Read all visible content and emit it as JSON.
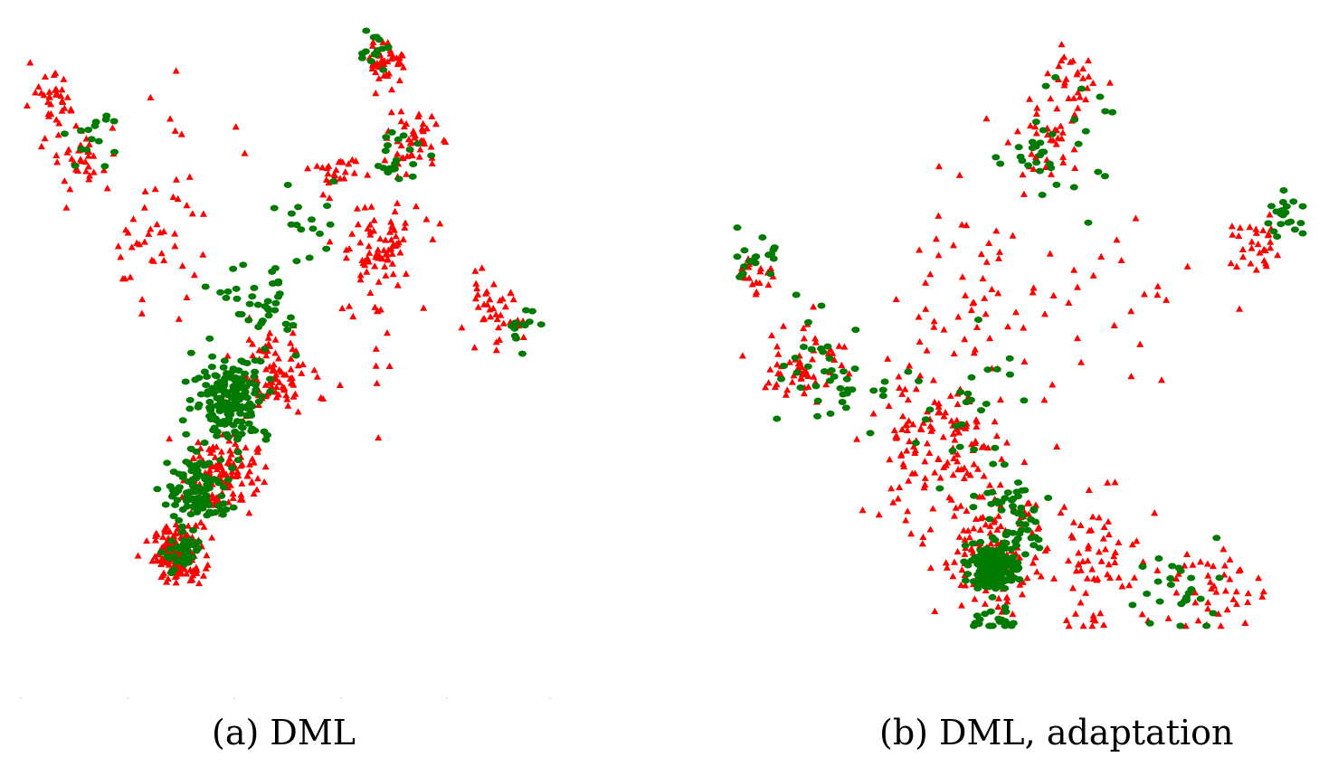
{
  "colors": {
    "series_triangle": "#ff0000",
    "series_circle": "#007a00"
  },
  "chart_data": [
    {
      "type": "scatter",
      "caption": "(a) DML",
      "title": "",
      "xlabel": "",
      "ylabel": "",
      "grid": false,
      "legend": "none",
      "axes_visible": false,
      "xlim": [
        0,
        100
      ],
      "ylim": [
        0,
        100
      ],
      "series": [
        {
          "marker": "triangle",
          "color": "#ff0000",
          "clusters": [
            {
              "x": 30,
              "y": 9,
              "spread": 4,
              "n": 170
            },
            {
              "x": 38,
              "y": 23,
              "spread": 6,
              "n": 130
            },
            {
              "x": 48,
              "y": 40,
              "spread": 6,
              "n": 90
            },
            {
              "x": 68,
              "y": 62,
              "spread": 7,
              "n": 80
            },
            {
              "x": 75,
              "y": 80,
              "spread": 4,
              "n": 50
            },
            {
              "x": 70,
              "y": 94,
              "spread": 3,
              "n": 45
            },
            {
              "x": 12,
              "y": 78,
              "spread": 6,
              "n": 40
            },
            {
              "x": 5,
              "y": 87,
              "spread": 4,
              "n": 30
            },
            {
              "x": 90,
              "y": 50,
              "spread": 5,
              "n": 40
            },
            {
              "x": 25,
              "y": 62,
              "spread": 8,
              "n": 35
            },
            {
              "x": 60,
              "y": 75,
              "spread": 4,
              "n": 25
            },
            {
              "x": 30,
              "y": 79,
              "spread": 10,
              "n": 12
            },
            {
              "x": 70,
              "y": 45,
              "spread": 8,
              "n": 12
            }
          ]
        },
        {
          "marker": "circle",
          "color": "#007a00",
          "clusters": [
            {
              "x": 40,
              "y": 36,
              "spread": 6,
              "n": 170
            },
            {
              "x": 34,
              "y": 20,
              "spread": 5,
              "n": 110
            },
            {
              "x": 31,
              "y": 9,
              "spread": 3,
              "n": 40
            },
            {
              "x": 46,
              "y": 52,
              "spread": 6,
              "n": 40
            },
            {
              "x": 72,
              "y": 78,
              "spread": 4,
              "n": 20
            },
            {
              "x": 68,
              "y": 96,
              "spread": 3,
              "n": 15
            },
            {
              "x": 13,
              "y": 82,
              "spread": 5,
              "n": 15
            },
            {
              "x": 96,
              "y": 48,
              "spread": 3,
              "n": 12
            },
            {
              "x": 55,
              "y": 66,
              "spread": 6,
              "n": 15
            }
          ]
        }
      ]
    },
    {
      "type": "scatter",
      "caption": "(b) DML, adaptation",
      "title": "",
      "xlabel": "",
      "ylabel": "",
      "grid": false,
      "legend": "none",
      "axes_visible": false,
      "xlim": [
        0,
        100
      ],
      "ylim": [
        0,
        100
      ],
      "series": [
        {
          "marker": "triangle",
          "color": "#ff0000",
          "clusters": [
            {
              "x": 45,
              "y": 12,
              "spread": 8,
              "n": 130
            },
            {
              "x": 35,
              "y": 30,
              "spread": 10,
              "n": 120
            },
            {
              "x": 65,
              "y": 10,
              "spread": 10,
              "n": 70
            },
            {
              "x": 85,
              "y": 7,
              "spread": 6,
              "n": 40
            },
            {
              "x": 12,
              "y": 45,
              "spread": 6,
              "n": 60
            },
            {
              "x": 3,
              "y": 60,
              "spread": 3,
              "n": 20
            },
            {
              "x": 55,
              "y": 82,
              "spread": 6,
              "n": 40
            },
            {
              "x": 60,
              "y": 93,
              "spread": 4,
              "n": 25
            },
            {
              "x": 92,
              "y": 64,
              "spread": 4,
              "n": 30
            },
            {
              "x": 40,
              "y": 55,
              "spread": 15,
              "n": 60
            },
            {
              "x": 70,
              "y": 55,
              "spread": 15,
              "n": 25
            }
          ]
        },
        {
          "marker": "circle",
          "color": "#007a00",
          "clusters": [
            {
              "x": 45,
              "y": 10,
              "spread": 3,
              "n": 200
            },
            {
              "x": 48,
              "y": 18,
              "spread": 7,
              "n": 60
            },
            {
              "x": 45,
              "y": 0,
              "spread": 3,
              "n": 20
            },
            {
              "x": 80,
              "y": 6,
              "spread": 8,
              "n": 25
            },
            {
              "x": 18,
              "y": 42,
              "spread": 8,
              "n": 40
            },
            {
              "x": 3,
              "y": 62,
              "spread": 3,
              "n": 20
            },
            {
              "x": 55,
              "y": 82,
              "spread": 8,
              "n": 35
            },
            {
              "x": 97,
              "y": 70,
              "spread": 3,
              "n": 20
            },
            {
              "x": 40,
              "y": 38,
              "spread": 10,
              "n": 25
            }
          ]
        }
      ]
    }
  ]
}
